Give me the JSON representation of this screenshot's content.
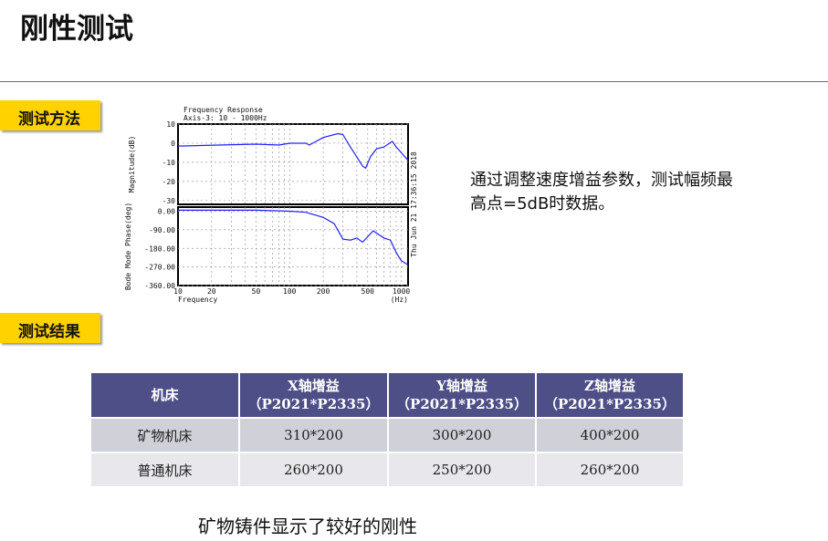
{
  "title": "刚性测试",
  "section_method": "测试方法",
  "section_result": "测试结果",
  "note": "通过调整速度增益参数，测试幅频最高点=5dB时数据。",
  "table": {
    "headers": [
      [
        "机床",
        ""
      ],
      [
        "X轴增益",
        "（P2021*P2335）"
      ],
      [
        "Y轴增益",
        "（P2021*P2335）"
      ],
      [
        "Z轴增益",
        "（P2021*P2335）"
      ]
    ],
    "rows": [
      [
        "矿物机床",
        "310*200",
        "300*200",
        "400*200"
      ],
      [
        "普通机床",
        "260*200",
        "250*200",
        "260*200"
      ]
    ]
  },
  "conclusion": "矿物铸件显示了较好的刚性",
  "chart_data": {
    "type": "line",
    "title": "Frequency Response",
    "subtitle": "Axis-3: 10 - 1000Hz",
    "timestamp": "Thu Jun 21 17:36:15 2018",
    "xlabel": "Frequency",
    "xunit": "(Hz)",
    "xscale": "log",
    "xlim": [
      10,
      1150
    ],
    "xticks": [
      "10",
      "20",
      "50",
      "100",
      "200",
      "500",
      "1000"
    ],
    "line_color": "#2020ff",
    "grid": true,
    "panels": [
      {
        "ylabel": "Magnitude(dB)",
        "ylim": [
          -32,
          10
        ],
        "yticks": [
          "10",
          "0",
          "-10",
          "-20",
          "-30"
        ],
        "ytick_values": [
          10,
          0,
          -10,
          -20,
          -30
        ],
        "x": [
          10,
          50,
          80,
          100,
          140,
          150,
          200,
          270,
          300,
          350,
          450,
          480,
          530,
          600,
          700,
          830,
          900,
          1000,
          1150
        ],
        "y": [
          -1.5,
          -0.5,
          -1,
          0,
          0,
          -1,
          3,
          5,
          4.5,
          -2,
          -12,
          -13,
          -7,
          -3,
          -2,
          1,
          -2,
          -5,
          -9
        ]
      },
      {
        "ylabel": "Bode Mode Phase(deg)",
        "ylim": [
          -360,
          20
        ],
        "yticks": [
          "0.00",
          "-90.00",
          "-180.00",
          "-270.00",
          "-360.00"
        ],
        "ytick_values": [
          0,
          -90,
          -180,
          -270,
          -360
        ],
        "x": [
          10,
          50,
          100,
          140,
          150,
          200,
          250,
          300,
          350,
          400,
          450,
          560,
          700,
          800,
          900,
          1000,
          1150
        ],
        "y": [
          5,
          5,
          0,
          -5,
          -10,
          -30,
          -60,
          -135,
          -140,
          -130,
          -150,
          -95,
          -130,
          -140,
          -200,
          -240,
          -260
        ]
      }
    ]
  }
}
